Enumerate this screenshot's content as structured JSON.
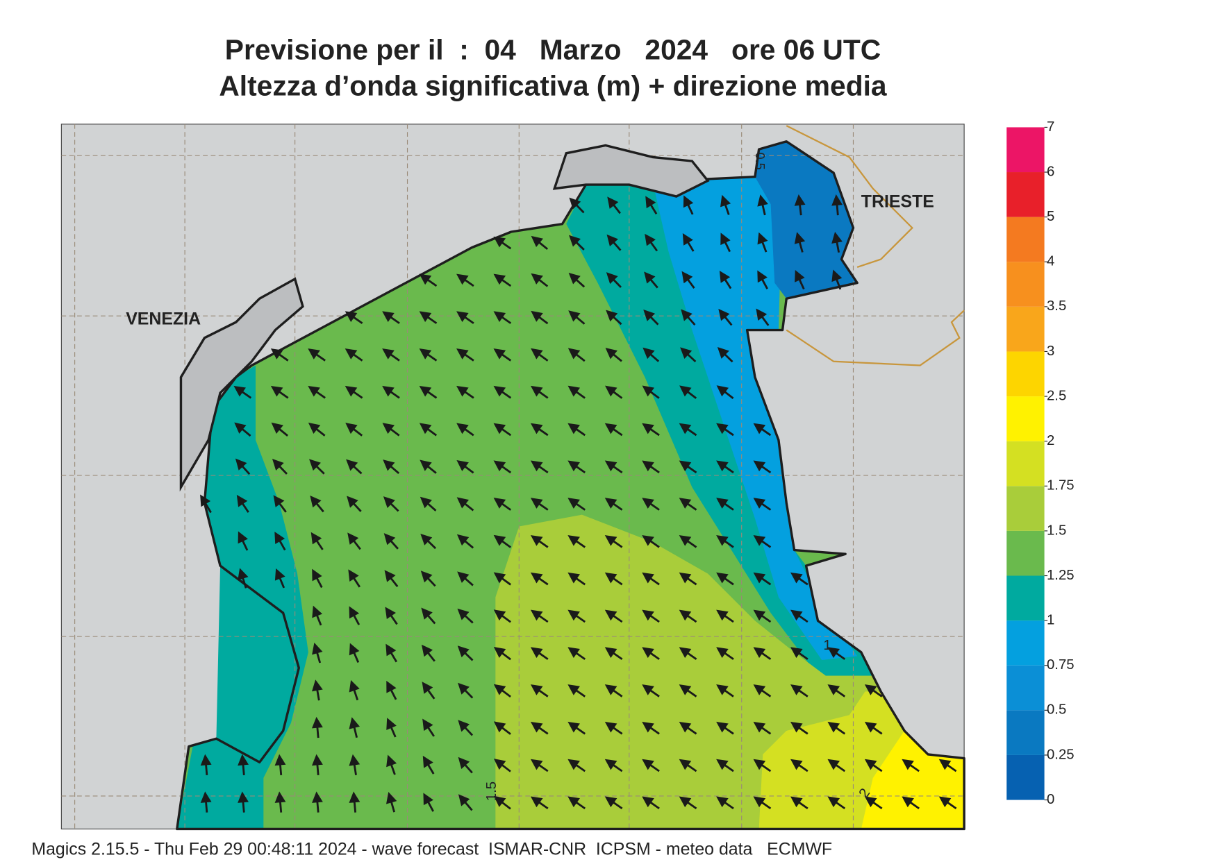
{
  "header": {
    "title_line1": "Previsione per il  :  04   Marzo   2024   ore 06 UTC",
    "title_line2": "Altezza d’onda significativa (m) + direzione media"
  },
  "map": {
    "places": [
      "VENEZIA",
      "TRIESTE"
    ],
    "contour_labels": [
      "0.5",
      "1",
      "1.5",
      "2"
    ]
  },
  "legend": {
    "ticks": [
      0,
      0.25,
      0.5,
      0.75,
      1,
      1.25,
      1.5,
      1.75,
      2,
      2.5,
      3,
      3.5,
      4,
      5,
      6,
      7
    ],
    "colors": [
      "#0661b1",
      "#0a79c1",
      "#0b8fd6",
      "#04a0df",
      "#00aa9f",
      "#6aba4d",
      "#a9cd3a",
      "#d4e022",
      "#fff200",
      "#fdd500",
      "#f9a61b",
      "#f7901e",
      "#f47a20",
      "#e8202a",
      "#ec1566"
    ]
  },
  "footer": "Magics 2.15.5 - Thu Feb 29 00:48:11 2024 - wave forecast  ISMAR-CNR  ICPSM - meteo data   ECMWF"
}
